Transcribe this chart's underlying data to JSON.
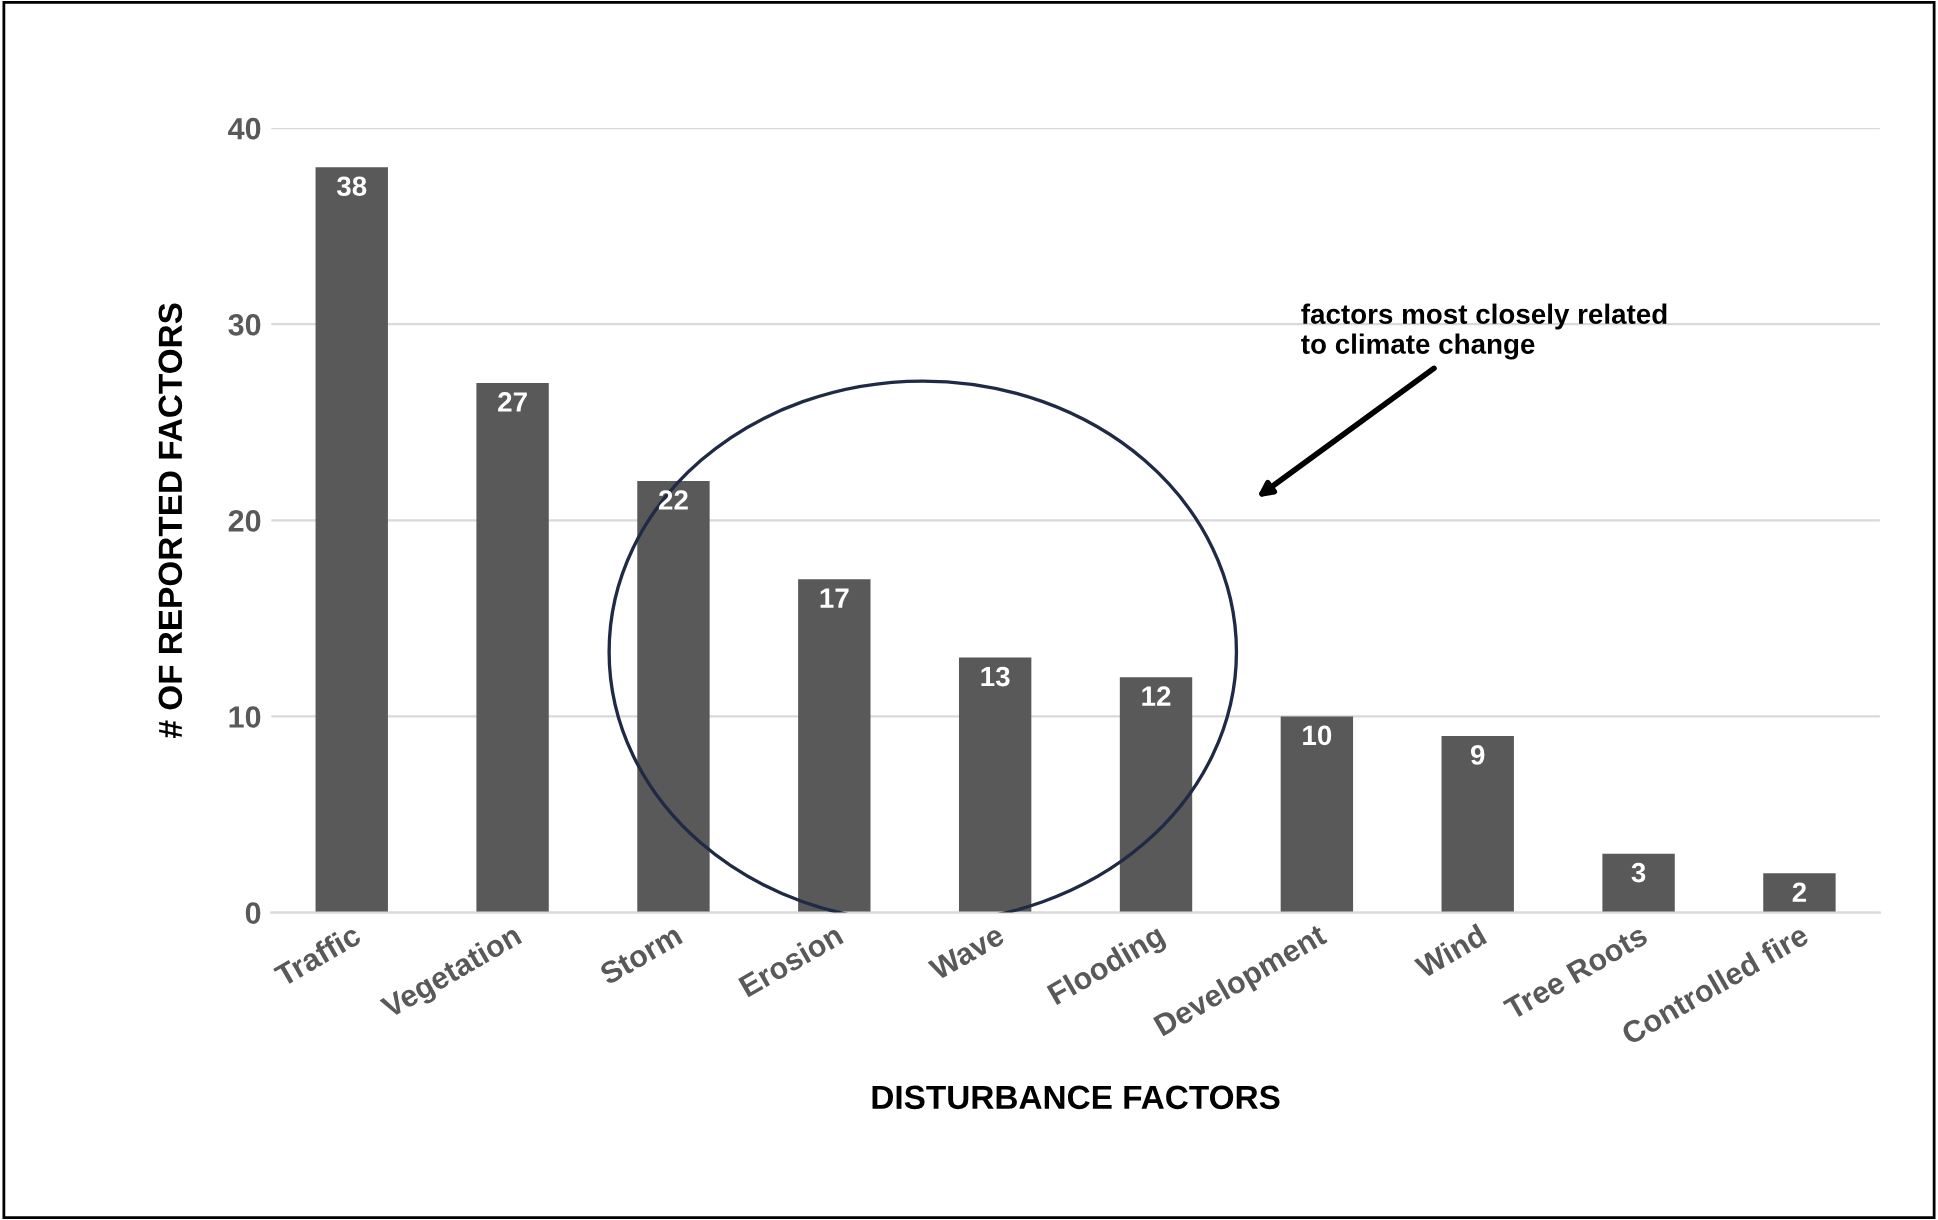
{
  "chart_data": {
    "type": "bar",
    "categories": [
      "Traffic",
      "Vegetation",
      "Storm",
      "Erosion",
      "Wave",
      "Flooding",
      "Development",
      "Wind",
      "Tree Roots",
      "Controlled fire"
    ],
    "values": [
      38,
      27,
      22,
      17,
      13,
      12,
      10,
      9,
      3,
      2
    ],
    "color": "#595959",
    "xlabel": "DISTURBANCE FACTORS",
    "ylabel": "# OF REPORTED FACTORS",
    "ylim": [
      0,
      40
    ],
    "yticks": [
      0,
      10,
      20,
      30,
      40
    ],
    "grid": "y",
    "data_labels": true,
    "annotations": [
      "factors most closely related\nto climate change"
    ]
  }
}
